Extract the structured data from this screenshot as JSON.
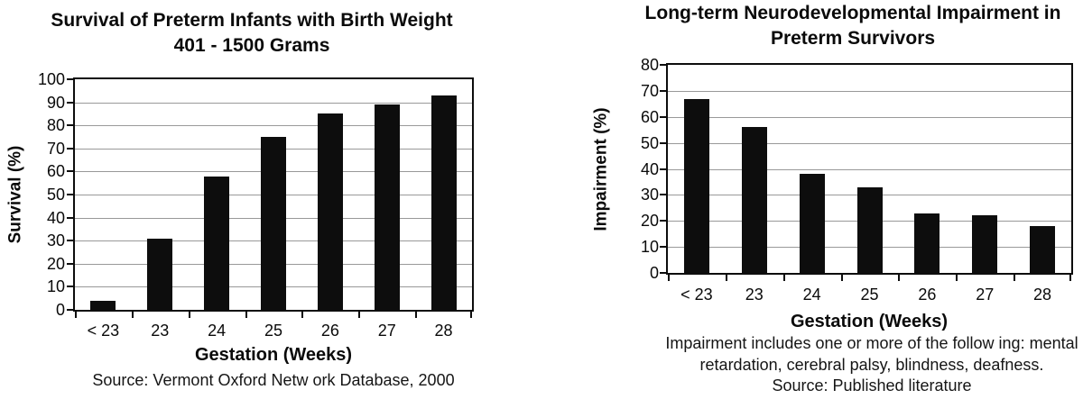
{
  "page": {
    "background": "#ffffff",
    "text_color": "#0a0a0a",
    "gridline_color": "#999999"
  },
  "chart_data": [
    {
      "type": "bar",
      "title": "Survival of Preterm Infants with Birth Weight 401 - 1500 Grams",
      "title_lines": [
        "Survival of Preterm Infants with Birth Weight",
        "401 - 1500 Grams"
      ],
      "categories": [
        "< 23",
        "23",
        "24",
        "25",
        "26",
        "27",
        "28"
      ],
      "values": [
        4,
        31,
        58,
        75,
        85,
        89,
        93
      ],
      "xlabel": "Gestation (Weeks)",
      "ylabel": "Survival (%)",
      "ylim": [
        0,
        100
      ],
      "ytick_step": 10,
      "grid": true,
      "legend": "none",
      "bar_color": "#0d0d0d",
      "notes": [],
      "source": "Source: Vermont Oxford Netw ork Database, 2000"
    },
    {
      "type": "bar",
      "title": "Long-term Neurodevelopmental Impairment in Preterm Survivors",
      "title_lines": [
        "Long-term Neurodevelopmental Impairment in",
        "Preterm Survivors"
      ],
      "categories": [
        "< 23",
        "23",
        "24",
        "25",
        "26",
        "27",
        "28"
      ],
      "values": [
        67,
        56,
        38,
        33,
        23,
        22,
        18
      ],
      "xlabel": "Gestation (Weeks)",
      "ylabel": "Impairment (%)",
      "ylim": [
        0,
        80
      ],
      "ytick_step": 10,
      "grid": true,
      "legend": "none",
      "bar_color": "#0d0d0d",
      "notes": [
        "Impairment includes one or more of the follow ing: mental",
        "retardation, cerebral palsy, blindness, deafness."
      ],
      "source": "Source: Published literature"
    }
  ]
}
